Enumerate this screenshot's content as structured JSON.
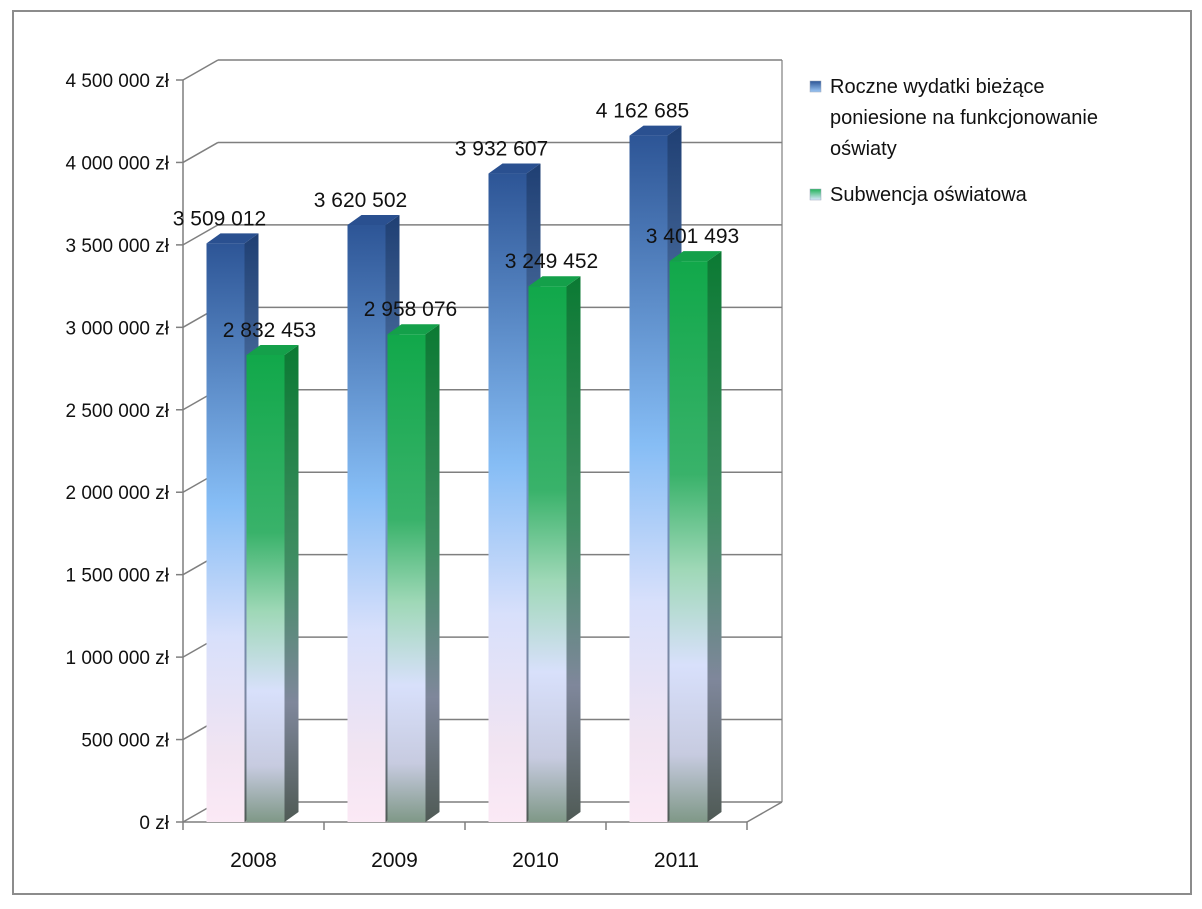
{
  "chart_data": {
    "type": "bar",
    "categories": [
      "2008",
      "2009",
      "2010",
      "2011"
    ],
    "series": [
      {
        "name": "Roczne wydatki bieżące poniesione na funkcjonowanie oświaty",
        "values": [
          3509012,
          3620502,
          3932607,
          4162685
        ],
        "labels": [
          "3 509 012",
          "3 620 502",
          "3 932 607",
          "4 162 685"
        ],
        "color": "#2e5fa3"
      },
      {
        "name": "Subwencja oświatowa",
        "values": [
          2832453,
          2958076,
          3249452,
          3401493
        ],
        "labels": [
          "2 832 453",
          "2 958 076",
          "3 249 452",
          "3 401 493"
        ],
        "color": "#1aa64a"
      }
    ],
    "ylim": [
      0,
      4500000
    ],
    "ytick_labels": [
      "0 zł",
      "500 000 zł",
      "1 000 000 zł",
      "1 500 000 zł",
      "2 000 000 zł",
      "2 500 000 zł",
      "3 000 000 zł",
      "3 500 000 zł",
      "4 000 000 zł",
      "4 500 000 zł"
    ],
    "legend_lines": [
      [
        "Roczne wydatki bieżące",
        "poniesione na funkcjonowanie",
        "oświaty"
      ],
      [
        "Subwencja oświatowa"
      ]
    ],
    "grid": true,
    "legend_position": "right"
  }
}
